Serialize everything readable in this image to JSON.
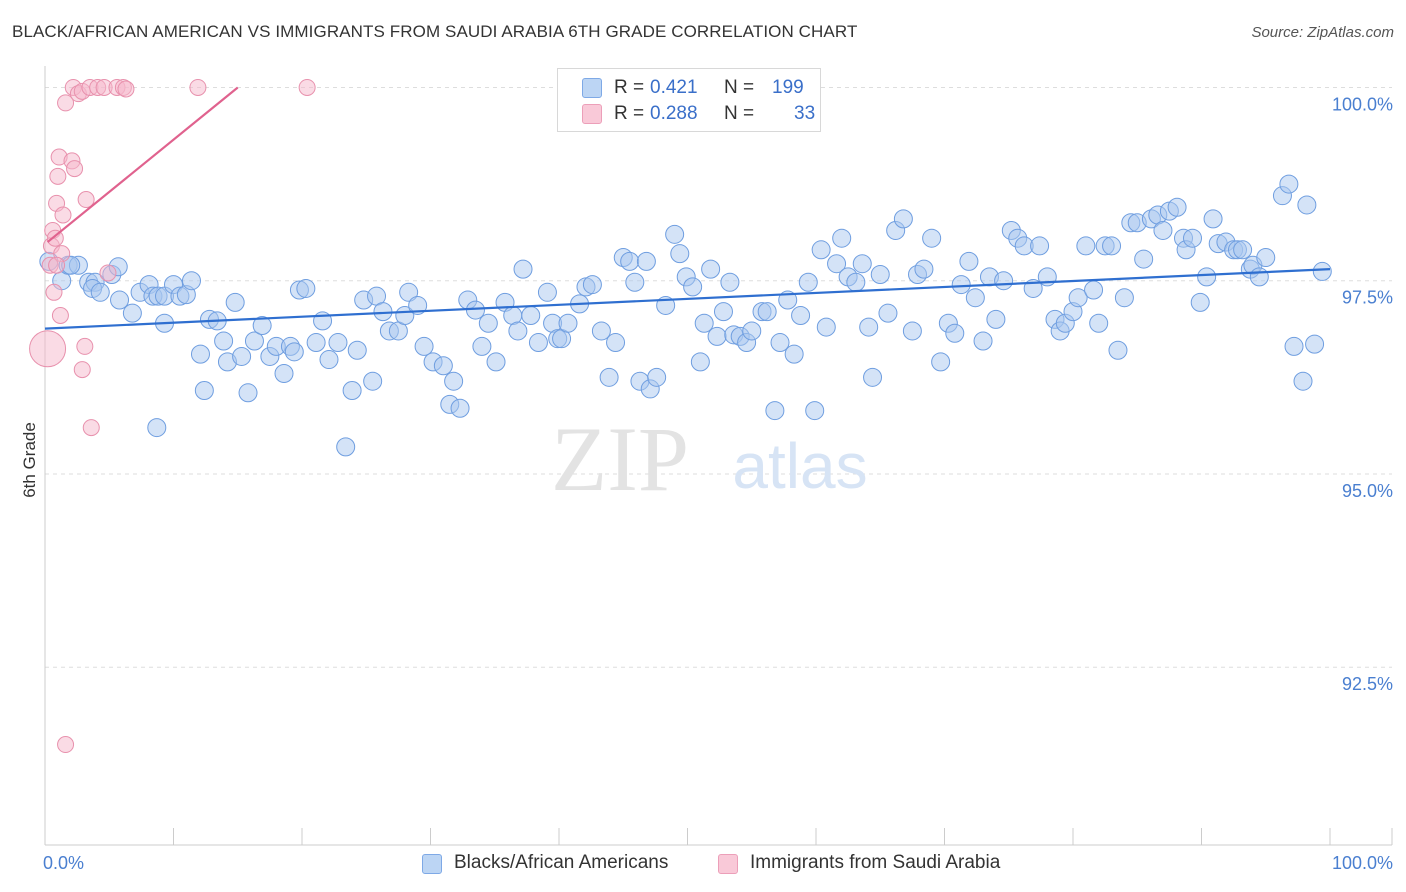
{
  "header": {
    "title": "BLACK/AFRICAN AMERICAN VS IMMIGRANTS FROM SAUDI ARABIA 6TH GRADE CORRELATION CHART",
    "source": "Source: ZipAtlas.com"
  },
  "legend": {
    "rows": [
      {
        "r_label": "R =",
        "r_value": "0.421",
        "n_label": "N =",
        "n_value": "199",
        "color": "#a9c8f0"
      },
      {
        "r_label": "R =",
        "r_value": "0.288",
        "n_label": "N =",
        "n_value": "33",
        "color": "#f5b8cb"
      }
    ]
  },
  "bottom_legend": {
    "items": [
      {
        "label": "Blacks/African Americans",
        "color": "#a9c8f0"
      },
      {
        "label": "Immigrants from Saudi Arabia",
        "color": "#f5b8cb"
      }
    ]
  },
  "watermark": {
    "zip": "ZIP",
    "atlas": "atlas"
  },
  "chart_data": {
    "type": "scatter",
    "title": "BLACK/AFRICAN AMERICAN VS IMMIGRANTS FROM SAUDI ARABIA 6TH GRADE CORRELATION CHART",
    "xlabel": "",
    "ylabel": "6th Grade",
    "xlim": [
      0,
      100
    ],
    "ylim": [
      90.2,
      100.2
    ],
    "x_tick_labels": [
      "0.0%",
      "100.0%"
    ],
    "y_ticks": [
      100.0,
      97.5,
      95.0,
      92.5
    ],
    "y_tick_labels": [
      "100.0%",
      "97.5%",
      "95.0%",
      "92.5%"
    ],
    "grid": true,
    "legend_position": "top-center",
    "series": [
      {
        "name": "Blacks/African Americans",
        "color": "#a9c8f0",
        "edge": "#6f9ee0",
        "trend_color": "#2f6fd0",
        "trend": {
          "x": [
            0,
            100
          ],
          "y": [
            96.88,
            97.65
          ]
        },
        "points": [
          [
            0.3,
            97.75
          ],
          [
            1.3,
            97.5
          ],
          [
            1.8,
            97.7
          ],
          [
            2.6,
            97.7
          ],
          [
            3.4,
            97.48
          ],
          [
            3.9,
            97.48
          ],
          [
            3.7,
            97.4
          ],
          [
            4.3,
            97.35
          ],
          [
            5.2,
            97.58
          ],
          [
            5.7,
            97.68
          ],
          [
            5.8,
            97.25
          ],
          [
            6.8,
            97.08
          ],
          [
            7.4,
            97.35
          ],
          [
            8.1,
            97.45
          ],
          [
            8.4,
            97.3
          ],
          [
            8.8,
            97.3
          ],
          [
            9.3,
            97.3
          ],
          [
            8.7,
            95.6
          ],
          [
            9.3,
            96.95
          ],
          [
            10.0,
            97.45
          ],
          [
            10.5,
            97.3
          ],
          [
            11.0,
            97.32
          ],
          [
            11.4,
            97.5
          ],
          [
            12.1,
            96.55
          ],
          [
            12.4,
            96.08
          ],
          [
            12.8,
            97.0
          ],
          [
            13.4,
            96.98
          ],
          [
            13.9,
            96.72
          ],
          [
            14.2,
            96.45
          ],
          [
            14.8,
            97.22
          ],
          [
            15.3,
            96.52
          ],
          [
            15.8,
            96.05
          ],
          [
            16.3,
            96.72
          ],
          [
            16.9,
            96.92
          ],
          [
            17.5,
            96.52
          ],
          [
            18.0,
            96.65
          ],
          [
            18.6,
            96.3
          ],
          [
            19.1,
            96.65
          ],
          [
            19.4,
            96.58
          ],
          [
            19.8,
            97.38
          ],
          [
            20.3,
            97.4
          ],
          [
            21.1,
            96.7
          ],
          [
            21.6,
            96.98
          ],
          [
            22.1,
            96.48
          ],
          [
            22.8,
            96.7
          ],
          [
            23.4,
            95.35
          ],
          [
            23.9,
            96.08
          ],
          [
            24.3,
            96.6
          ],
          [
            24.8,
            97.25
          ],
          [
            25.5,
            96.2
          ],
          [
            25.8,
            97.3
          ],
          [
            26.3,
            97.1
          ],
          [
            26.8,
            96.85
          ],
          [
            27.5,
            96.85
          ],
          [
            28.0,
            97.05
          ],
          [
            28.3,
            97.35
          ],
          [
            29.0,
            97.18
          ],
          [
            29.5,
            96.65
          ],
          [
            30.2,
            96.45
          ],
          [
            31.0,
            96.4
          ],
          [
            31.5,
            95.9
          ],
          [
            31.8,
            96.2
          ],
          [
            32.3,
            95.85
          ],
          [
            32.9,
            97.25
          ],
          [
            33.5,
            97.12
          ],
          [
            34.0,
            96.65
          ],
          [
            34.5,
            96.95
          ],
          [
            35.1,
            96.45
          ],
          [
            35.8,
            97.22
          ],
          [
            36.4,
            97.05
          ],
          [
            36.8,
            96.85
          ],
          [
            37.2,
            97.65
          ],
          [
            37.8,
            97.05
          ],
          [
            38.4,
            96.7
          ],
          [
            39.1,
            97.35
          ],
          [
            39.5,
            96.95
          ],
          [
            39.9,
            96.75
          ],
          [
            40.2,
            96.75
          ],
          [
            40.7,
            96.95
          ],
          [
            41.6,
            97.2
          ],
          [
            42.1,
            97.42
          ],
          [
            42.6,
            97.45
          ],
          [
            43.3,
            96.85
          ],
          [
            43.9,
            96.25
          ],
          [
            44.4,
            96.7
          ],
          [
            45.0,
            97.8
          ],
          [
            45.5,
            97.75
          ],
          [
            45.9,
            97.48
          ],
          [
            46.3,
            96.2
          ],
          [
            46.8,
            97.75
          ],
          [
            47.1,
            96.1
          ],
          [
            47.6,
            96.25
          ],
          [
            48.3,
            97.18
          ],
          [
            49.0,
            98.1
          ],
          [
            49.4,
            97.85
          ],
          [
            49.9,
            97.55
          ],
          [
            50.4,
            97.42
          ],
          [
            51.0,
            96.45
          ],
          [
            51.3,
            96.95
          ],
          [
            51.8,
            97.65
          ],
          [
            52.3,
            96.78
          ],
          [
            52.8,
            97.1
          ],
          [
            53.3,
            97.48
          ],
          [
            53.6,
            96.8
          ],
          [
            54.1,
            96.78
          ],
          [
            54.6,
            96.7
          ],
          [
            55.0,
            96.85
          ],
          [
            55.8,
            97.1
          ],
          [
            56.2,
            97.1
          ],
          [
            56.8,
            95.82
          ],
          [
            57.2,
            96.7
          ],
          [
            57.8,
            97.25
          ],
          [
            58.3,
            96.55
          ],
          [
            58.8,
            97.05
          ],
          [
            59.4,
            97.48
          ],
          [
            59.9,
            95.82
          ],
          [
            60.4,
            97.9
          ],
          [
            60.8,
            96.9
          ],
          [
            61.6,
            97.72
          ],
          [
            62.0,
            98.05
          ],
          [
            62.5,
            97.55
          ],
          [
            63.1,
            97.48
          ],
          [
            63.6,
            97.72
          ],
          [
            64.1,
            96.9
          ],
          [
            64.4,
            96.25
          ],
          [
            65.0,
            97.58
          ],
          [
            65.6,
            97.08
          ],
          [
            66.2,
            98.15
          ],
          [
            66.8,
            98.3
          ],
          [
            67.5,
            96.85
          ],
          [
            67.9,
            97.58
          ],
          [
            68.4,
            97.65
          ],
          [
            69.0,
            98.05
          ],
          [
            69.7,
            96.45
          ],
          [
            70.3,
            96.95
          ],
          [
            70.8,
            96.82
          ],
          [
            71.3,
            97.45
          ],
          [
            71.9,
            97.75
          ],
          [
            72.4,
            97.28
          ],
          [
            73.0,
            96.72
          ],
          [
            73.5,
            97.55
          ],
          [
            74.0,
            97.0
          ],
          [
            74.6,
            97.5
          ],
          [
            75.2,
            98.15
          ],
          [
            75.7,
            98.05
          ],
          [
            76.2,
            97.95
          ],
          [
            76.9,
            97.4
          ],
          [
            77.4,
            97.95
          ],
          [
            78.0,
            97.55
          ],
          [
            78.6,
            97.0
          ],
          [
            79.0,
            96.85
          ],
          [
            79.4,
            96.95
          ],
          [
            80.0,
            97.1
          ],
          [
            80.4,
            97.28
          ],
          [
            81.0,
            97.95
          ],
          [
            81.6,
            97.38
          ],
          [
            82.0,
            96.95
          ],
          [
            82.5,
            97.95
          ],
          [
            83.0,
            97.95
          ],
          [
            83.5,
            96.6
          ],
          [
            84.0,
            97.28
          ],
          [
            84.5,
            98.25
          ],
          [
            85.0,
            98.25
          ],
          [
            85.5,
            97.78
          ],
          [
            86.1,
            98.3
          ],
          [
            86.6,
            98.35
          ],
          [
            87.0,
            98.15
          ],
          [
            87.5,
            98.4
          ],
          [
            88.1,
            98.45
          ],
          [
            88.6,
            98.05
          ],
          [
            88.8,
            97.9
          ],
          [
            89.3,
            98.05
          ],
          [
            89.9,
            97.22
          ],
          [
            90.4,
            97.55
          ],
          [
            90.9,
            98.3
          ],
          [
            91.3,
            97.98
          ],
          [
            91.9,
            98.0
          ],
          [
            92.5,
            97.9
          ],
          [
            92.8,
            97.9
          ],
          [
            93.2,
            97.9
          ],
          [
            93.8,
            97.65
          ],
          [
            94.0,
            97.7
          ],
          [
            94.5,
            97.55
          ],
          [
            95.0,
            97.8
          ],
          [
            96.3,
            98.6
          ],
          [
            96.8,
            98.75
          ],
          [
            97.2,
            96.65
          ],
          [
            97.9,
            96.2
          ],
          [
            98.2,
            98.48
          ],
          [
            98.8,
            96.68
          ],
          [
            99.4,
            97.62
          ],
          [
            2.0,
            97.7
          ]
        ]
      },
      {
        "name": "Immigrants from Saudi Arabia",
        "color": "#f5b8cb",
        "edge": "#e891ad",
        "trend_color": "#e0628e",
        "trend": {
          "x": [
            0.2,
            15.0
          ],
          "y": [
            98.0,
            100.0
          ]
        },
        "points": [
          [
            0.2,
            96.62
          ],
          [
            0.4,
            97.7
          ],
          [
            0.5,
            97.95
          ],
          [
            0.6,
            98.15
          ],
          [
            0.7,
            97.35
          ],
          [
            0.8,
            98.05
          ],
          [
            0.9,
            98.5
          ],
          [
            1.0,
            98.85
          ],
          [
            1.1,
            99.1
          ],
          [
            1.2,
            97.05
          ],
          [
            1.3,
            97.85
          ],
          [
            1.4,
            98.35
          ],
          [
            1.6,
            99.8
          ],
          [
            2.1,
            99.05
          ],
          [
            2.2,
            100.0
          ],
          [
            2.3,
            98.95
          ],
          [
            2.6,
            99.92
          ],
          [
            2.9,
            99.95
          ],
          [
            3.1,
            96.65
          ],
          [
            2.9,
            96.35
          ],
          [
            3.2,
            98.55
          ],
          [
            3.5,
            100.0
          ],
          [
            3.6,
            95.6
          ],
          [
            4.1,
            100.0
          ],
          [
            4.6,
            100.0
          ],
          [
            4.9,
            97.6
          ],
          [
            5.6,
            100.0
          ],
          [
            6.1,
            100.0
          ],
          [
            6.3,
            99.98
          ],
          [
            11.9,
            100.0
          ],
          [
            20.4,
            100.0
          ],
          [
            1.6,
            91.5
          ],
          [
            0.9,
            97.7
          ]
        ]
      }
    ]
  }
}
